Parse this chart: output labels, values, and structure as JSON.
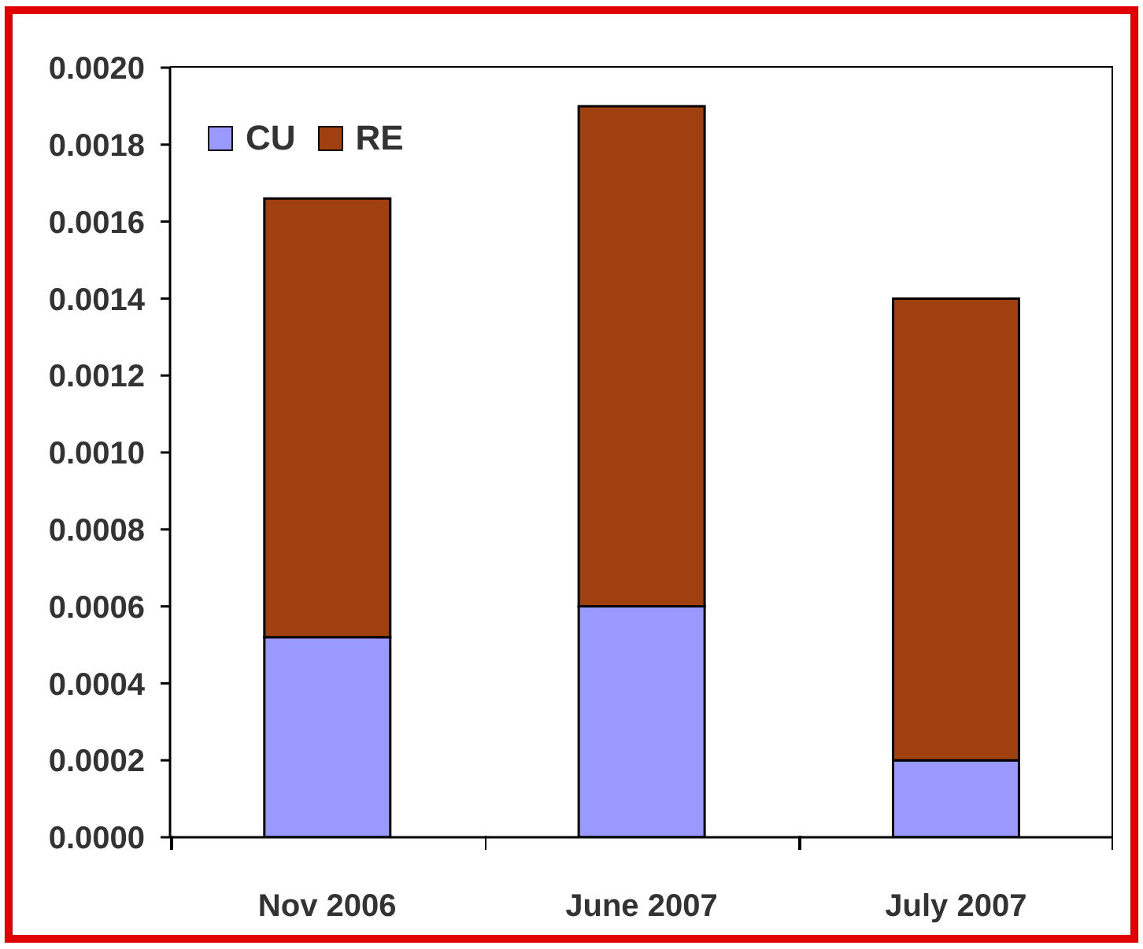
{
  "chart_data": {
    "type": "bar",
    "categories": [
      "Nov 2006",
      "June 2007",
      "July 2007"
    ],
    "stacked": true,
    "series": [
      {
        "name": "CU",
        "color": "#9999ff",
        "values": [
          0.00052,
          0.0006,
          0.0002
        ]
      },
      {
        "name": "RE",
        "color": "#a0400f",
        "values": [
          0.00114,
          0.0013,
          0.0012
        ]
      }
    ],
    "ylim": [
      0,
      0.002
    ],
    "yticks": [
      {
        "value": 0,
        "label": "0.0000"
      },
      {
        "value": 0.0002,
        "label": "0.0002"
      },
      {
        "value": 0.0004,
        "label": "0.0004"
      },
      {
        "value": 0.0006,
        "label": "0.0006"
      },
      {
        "value": 0.0008,
        "label": "0.0008"
      },
      {
        "value": 0.001,
        "label": "0.0010"
      },
      {
        "value": 0.0012,
        "label": "0.0012"
      },
      {
        "value": 0.0014,
        "label": "0.0014"
      },
      {
        "value": 0.0016,
        "label": "0.0016"
      },
      {
        "value": 0.0018,
        "label": "0.0018"
      },
      {
        "value": 0.002,
        "label": "0.0020"
      }
    ],
    "legend": "top left",
    "grid": false
  }
}
